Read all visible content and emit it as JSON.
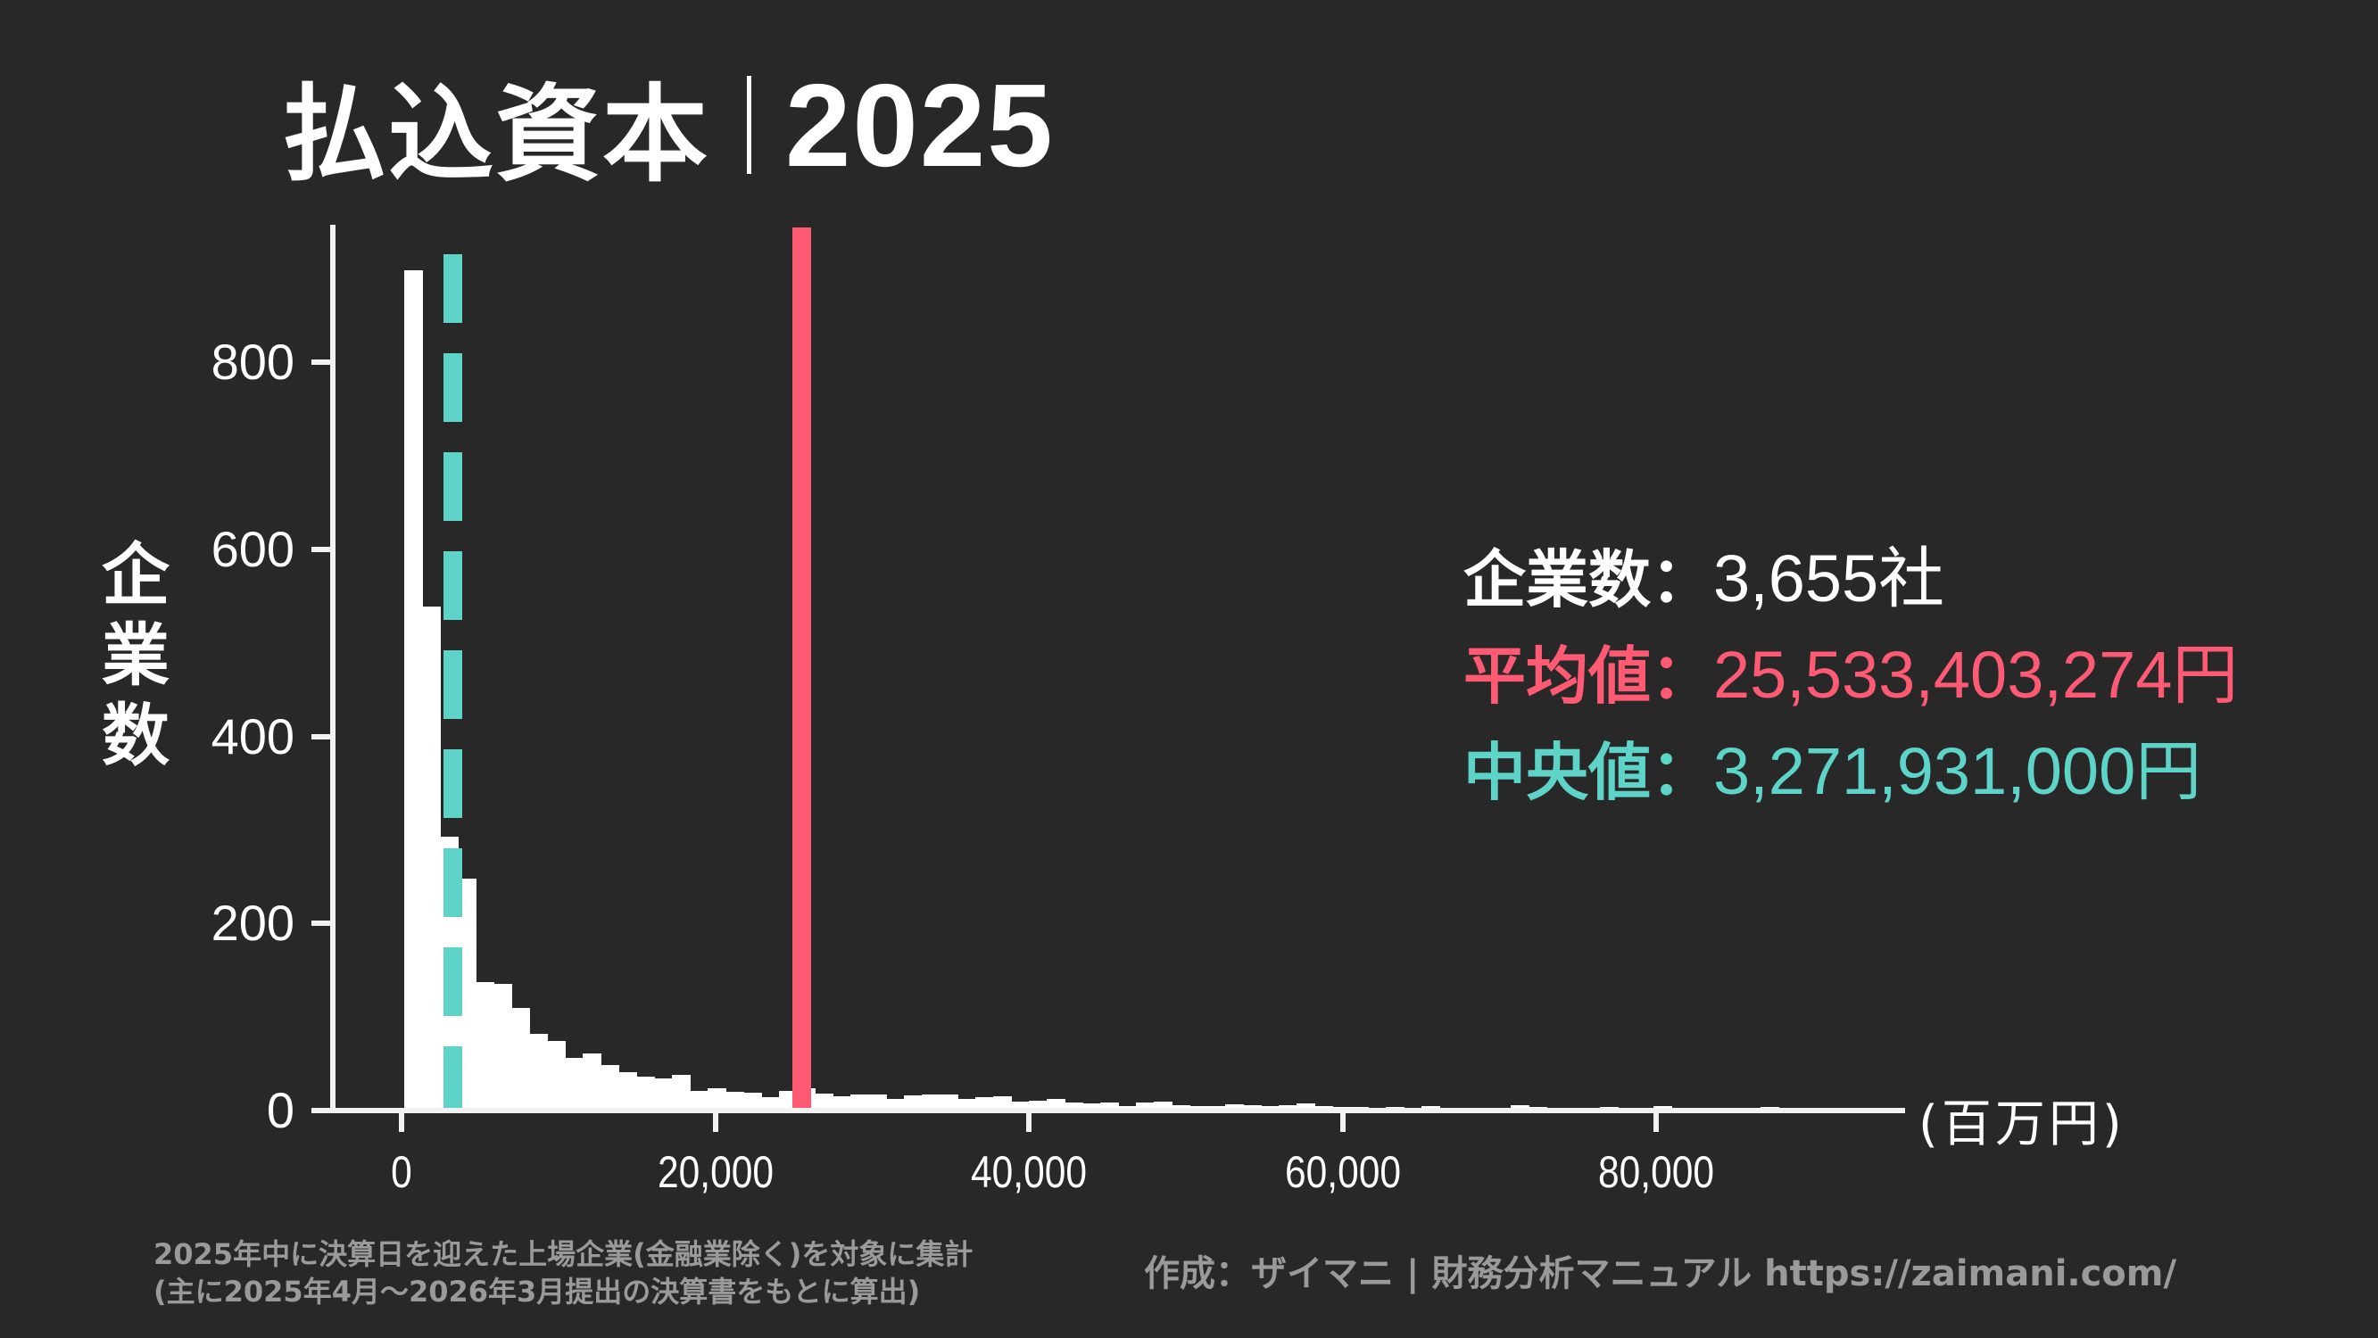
{
  "title": {
    "main": "払込資本",
    "year": "2025"
  },
  "stats": {
    "count_label": "企業数：",
    "count_value": "3,655社",
    "mean_label": "平均値：",
    "mean_value": "25,533,403,274円",
    "median_label": "中央値：",
    "median_value": "3,271,931,000円"
  },
  "colors": {
    "background": "#282828",
    "bars": "#ffffff",
    "mean": "#ff5a74",
    "median": "#5ed4c9",
    "footer_text": "#9a9a9a"
  },
  "footer": {
    "note_line1": "2025年中に決算日を迎えた上場企業(金融業除く)を対象に集計",
    "note_line2": "(主に2025年4月～2026年3月提出の決算書をもとに算出)",
    "credit": "作成：ザイマニ | 財務分析マニュアル https://zaimani.com/"
  },
  "chart_data": {
    "type": "bar",
    "subtype": "histogram",
    "title": "払込資本｜2025",
    "xlabel": "(百万円)",
    "ylabel": "企業数",
    "xlim": [
      -5200,
      96000
    ],
    "ylim": [
      0,
      950
    ],
    "x_ticks": [
      0,
      20000,
      40000,
      60000,
      80000
    ],
    "x_tick_labels": [
      "0",
      "20,000",
      "40,000",
      "60,000",
      "80,000"
    ],
    "y_ticks": [
      0,
      200,
      400,
      600,
      800
    ],
    "y_tick_labels": [
      "0",
      "200",
      "400",
      "600",
      "800"
    ],
    "grid": false,
    "bin_start": 170,
    "bin_width": 1138,
    "values": [
      898,
      539,
      293,
      248,
      137,
      135,
      110,
      82,
      74,
      56,
      61,
      49,
      41,
      36,
      34,
      38,
      21,
      24,
      20,
      19,
      14,
      21,
      24,
      18,
      15,
      17,
      17,
      12,
      16,
      17,
      17,
      12,
      14,
      15,
      10,
      11,
      12,
      9,
      8,
      9,
      5,
      9,
      10,
      6,
      5,
      5,
      7,
      6,
      5,
      6,
      8,
      5,
      4,
      4,
      3,
      4,
      3,
      5,
      3,
      2,
      3,
      2,
      6,
      4,
      3,
      3,
      2,
      4,
      2,
      2,
      5,
      2,
      2,
      3,
      2,
      2,
      4,
      2,
      2,
      2,
      2,
      2,
      3
    ],
    "mean_line": {
      "x": 25533,
      "label": "平均値",
      "color": "#ff5a74",
      "style": "solid"
    },
    "median_line": {
      "x": 3272,
      "label": "中央値",
      "color": "#5ed4c9",
      "style": "dashed"
    },
    "annotations": [
      "企業数：3,655社",
      "平均値：25,533,403,274円",
      "中央値：3,271,931,000円"
    ]
  }
}
